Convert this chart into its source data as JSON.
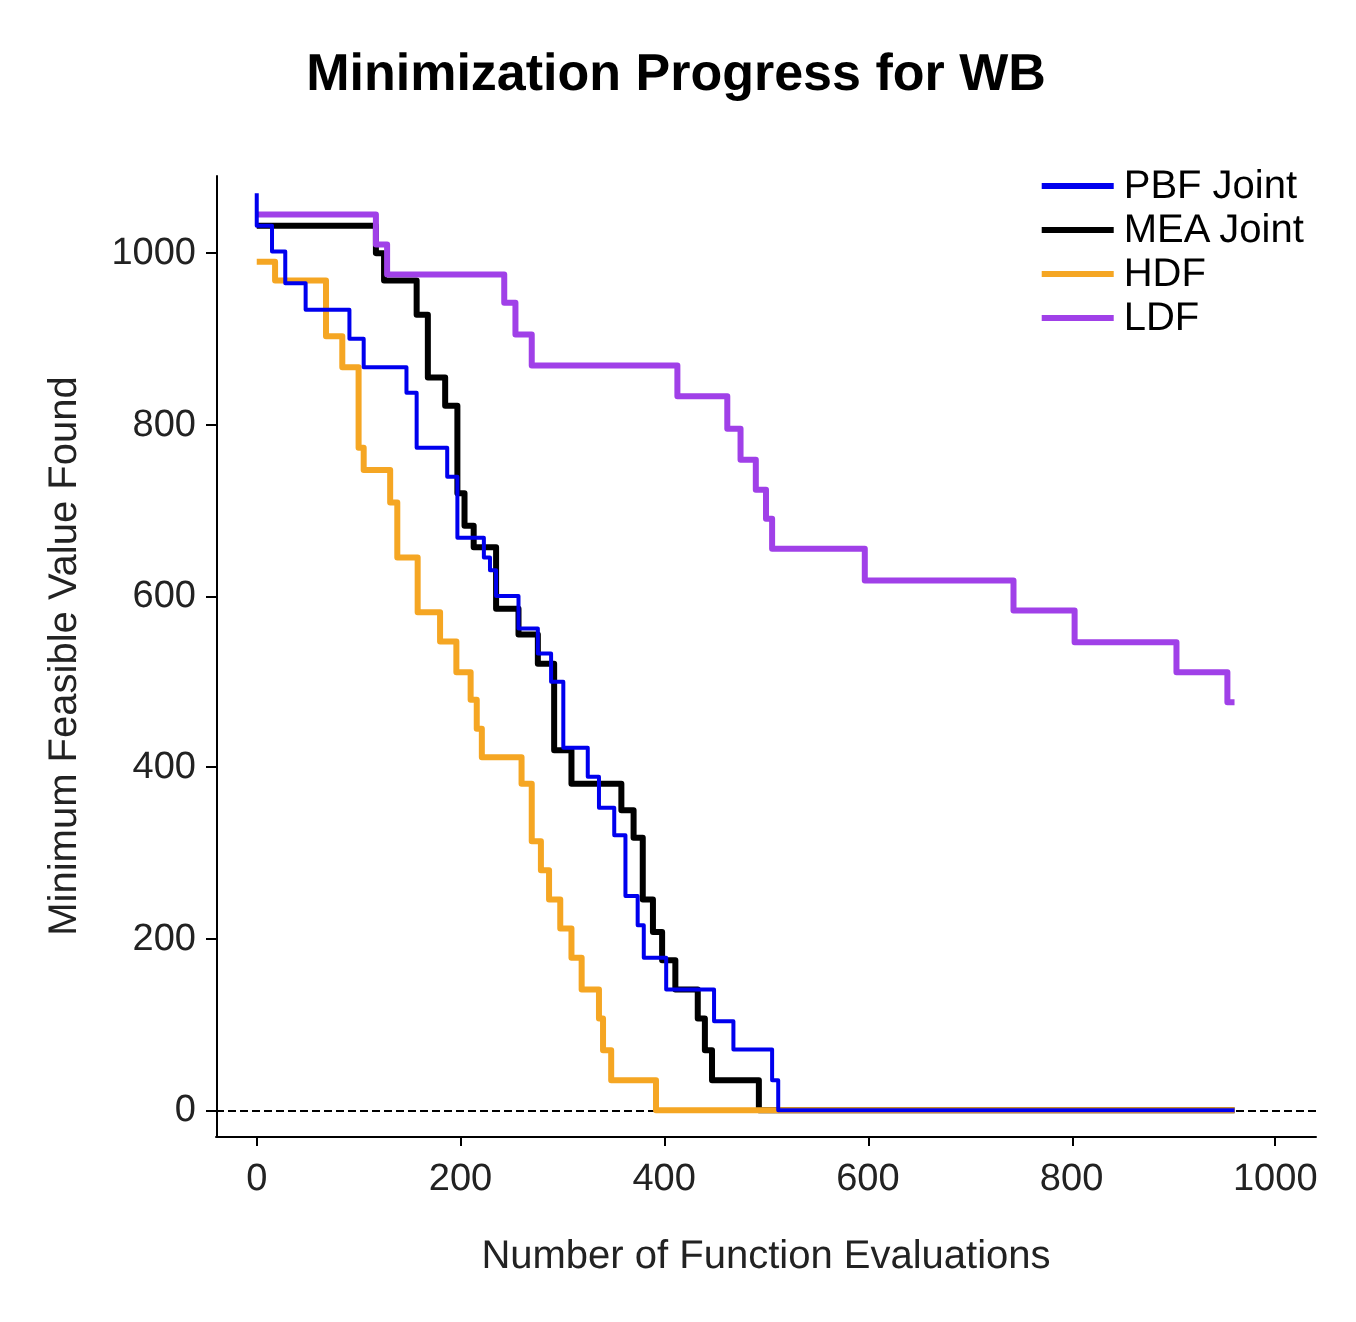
{
  "chart_data": {
    "type": "step",
    "title": "Minimization Progress for WB",
    "xlabel": "Number of Function Evaluations",
    "ylabel": "Minimum Feasible Value Found",
    "xlim": [
      -40,
      1040
    ],
    "ylim": [
      -30,
      1090
    ],
    "xticks": [
      0,
      200,
      400,
      600,
      800,
      1000
    ],
    "yticks": [
      0,
      200,
      400,
      600,
      800,
      1000
    ],
    "grid": false,
    "legend": "top right",
    "line_style": "solid",
    "marker": "none",
    "ref_lines": [
      {
        "axis": "y",
        "value": 0,
        "color": "#000000",
        "line_style": "dashed"
      }
    ],
    "series": [
      {
        "name": "PBF Joint",
        "color": "#0000ee",
        "x": [
          0,
          0,
          15,
          28,
          48,
          91,
          105,
          147,
          157,
          187,
          197,
          223,
          229,
          235,
          257,
          276,
          289,
          301,
          325,
          336,
          351,
          362,
          374,
          380,
          402,
          449,
          468,
          506,
          512,
          960
        ],
        "values": [
          1070,
          1032,
          1002,
          965,
          934,
          900,
          867,
          837,
          773,
          739,
          668,
          645,
          630,
          600,
          562,
          533,
          500,
          423,
          389,
          353,
          321,
          250,
          216,
          178,
          141,
          104,
          71,
          35,
          0,
          0
        ]
      },
      {
        "name": "MEA Joint",
        "color": "#000000",
        "x": [
          0,
          117,
          125,
          157,
          168,
          185,
          197,
          204,
          213,
          235,
          257,
          276,
          292,
          309,
          358,
          370,
          379,
          389,
          398,
          411,
          433,
          440,
          447,
          493,
          960
        ],
        "values": [
          1032,
          1000,
          968,
          928,
          855,
          822,
          720,
          682,
          657,
          585,
          555,
          521,
          420,
          381,
          350,
          318,
          246,
          208,
          175,
          141,
          107,
          70,
          35,
          0,
          0
        ]
      },
      {
        "name": "HDF",
        "color": "#f5a623",
        "x": [
          0,
          18,
          68,
          84,
          100,
          105,
          131,
          138,
          158,
          180,
          196,
          210,
          216,
          221,
          260,
          270,
          279,
          287,
          298,
          309,
          319,
          336,
          340,
          348,
          392,
          960
        ],
        "values": [
          990,
          968,
          903,
          867,
          773,
          747,
          709,
          645,
          581,
          547,
          511,
          479,
          445,
          412,
          381,
          314,
          280,
          246,
          212,
          178,
          141,
          107,
          70,
          35,
          0,
          0
        ]
      },
      {
        "name": "LDF",
        "color": "#a040e8",
        "x": [
          0,
          117,
          128,
          243,
          254,
          270,
          413,
          462,
          475,
          490,
          500,
          506,
          597,
          743,
          803,
          903,
          953,
          960
        ],
        "values": [
          1045,
          1010,
          975,
          942,
          905,
          869,
          833,
          795,
          759,
          724,
          690,
          655,
          618,
          583,
          546,
          511,
          476,
          476
        ]
      }
    ]
  }
}
